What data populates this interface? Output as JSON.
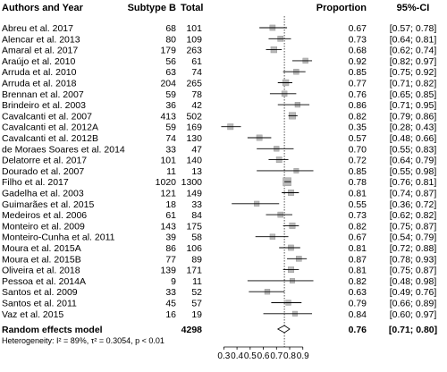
{
  "chart_data": {
    "type": "forest",
    "headers": {
      "study": "Authors and Year",
      "events": "Subtype B",
      "total": "Total",
      "proportion": "Proportion",
      "ci": "95%-CI"
    },
    "studies": [
      {
        "label": "Abreu et al. 2017",
        "events": "68",
        "total": "101",
        "prop": "0.67",
        "ci": "[0.57; 0.78]",
        "est": 0.67,
        "lo": 0.57,
        "hi": 0.78
      },
      {
        "label": "Alencar et al. 2013",
        "events": "80",
        "total": "109",
        "prop": "0.73",
        "ci": "[0.64; 0.81]",
        "est": 0.73,
        "lo": 0.64,
        "hi": 0.81
      },
      {
        "label": "Amaral et al. 2017",
        "events": "179",
        "total": "263",
        "prop": "0.68",
        "ci": "[0.62; 0.74]",
        "est": 0.68,
        "lo": 0.62,
        "hi": 0.74
      },
      {
        "label": "Araújo et al. 2010",
        "events": "56",
        "total": "61",
        "prop": "0.92",
        "ci": "[0.82; 0.97]",
        "est": 0.92,
        "lo": 0.82,
        "hi": 0.97
      },
      {
        "label": "Arruda et al. 2010",
        "events": "63",
        "total": "74",
        "prop": "0.85",
        "ci": "[0.75; 0.92]",
        "est": 0.85,
        "lo": 0.75,
        "hi": 0.92
      },
      {
        "label": "Arruda et al. 2018",
        "events": "204",
        "total": "265",
        "prop": "0.77",
        "ci": "[0.71; 0.82]",
        "est": 0.77,
        "lo": 0.71,
        "hi": 0.82
      },
      {
        "label": "Brennan et al. 2007",
        "events": "59",
        "total": "78",
        "prop": "0.76",
        "ci": "[0.65; 0.85]",
        "est": 0.76,
        "lo": 0.65,
        "hi": 0.85
      },
      {
        "label": "Brindeiro et al. 2003",
        "events": "36",
        "total": "42",
        "prop": "0.86",
        "ci": "[0.71; 0.95]",
        "est": 0.86,
        "lo": 0.71,
        "hi": 0.95
      },
      {
        "label": "Cavalcanti et al. 2007",
        "events": "413",
        "total": "502",
        "prop": "0.82",
        "ci": "[0.79; 0.86]",
        "est": 0.82,
        "lo": 0.79,
        "hi": 0.86
      },
      {
        "label": "Cavalcanti et al. 2012A",
        "events": "59",
        "total": "169",
        "prop": "0.35",
        "ci": "[0.28; 0.43]",
        "est": 0.35,
        "lo": 0.28,
        "hi": 0.43
      },
      {
        "label": "Cavalcanti et al. 2012B",
        "events": "74",
        "total": "130",
        "prop": "0.57",
        "ci": "[0.48; 0.66]",
        "est": 0.57,
        "lo": 0.48,
        "hi": 0.66
      },
      {
        "label": "de Moraes Soares et al. 2014",
        "events": "33",
        "total": "47",
        "prop": "0.70",
        "ci": "[0.55; 0.83]",
        "est": 0.7,
        "lo": 0.55,
        "hi": 0.83
      },
      {
        "label": "Delatorre et al. 2017",
        "events": "101",
        "total": "140",
        "prop": "0.72",
        "ci": "[0.64; 0.79]",
        "est": 0.72,
        "lo": 0.64,
        "hi": 0.79
      },
      {
        "label": "Dourado et al. 2007",
        "events": "11",
        "total": "13",
        "prop": "0.85",
        "ci": "[0.55; 0.98]",
        "est": 0.85,
        "lo": 0.55,
        "hi": 0.98
      },
      {
        "label": "Filho et al. 2017",
        "events": "1020",
        "total": "1300",
        "prop": "0.78",
        "ci": "[0.76; 0.81]",
        "est": 0.78,
        "lo": 0.76,
        "hi": 0.81
      },
      {
        "label": "Gadelha et al. 2003",
        "events": "121",
        "total": "149",
        "prop": "0.81",
        "ci": "[0.74; 0.87]",
        "est": 0.81,
        "lo": 0.74,
        "hi": 0.87
      },
      {
        "label": "Guimarães et al. 2015",
        "events": "18",
        "total": "33",
        "prop": "0.55",
        "ci": "[0.36; 0.72]",
        "est": 0.55,
        "lo": 0.36,
        "hi": 0.72
      },
      {
        "label": "Medeiros et al. 2006",
        "events": "61",
        "total": "84",
        "prop": "0.73",
        "ci": "[0.62; 0.82]",
        "est": 0.73,
        "lo": 0.62,
        "hi": 0.82
      },
      {
        "label": "Monteiro et al. 2009",
        "events": "143",
        "total": "175",
        "prop": "0.82",
        "ci": "[0.75; 0.87]",
        "est": 0.82,
        "lo": 0.75,
        "hi": 0.87
      },
      {
        "label": "Monteiro-Cunha et al. 2011",
        "events": "39",
        "total": "58",
        "prop": "0.67",
        "ci": "[0.54; 0.79]",
        "est": 0.67,
        "lo": 0.54,
        "hi": 0.79
      },
      {
        "label": "Moura et al. 2015A",
        "events": "86",
        "total": "106",
        "prop": "0.81",
        "ci": "[0.72; 0.88]",
        "est": 0.81,
        "lo": 0.72,
        "hi": 0.88
      },
      {
        "label": "Moura et al. 2015B",
        "events": "77",
        "total": "89",
        "prop": "0.87",
        "ci": "[0.78; 0.93]",
        "est": 0.87,
        "lo": 0.78,
        "hi": 0.93
      },
      {
        "label": "Oliveira et al. 2018",
        "events": "139",
        "total": "171",
        "prop": "0.81",
        "ci": "[0.75; 0.87]",
        "est": 0.81,
        "lo": 0.75,
        "hi": 0.87
      },
      {
        "label": "Pessoa et al. 2014A",
        "events": "9",
        "total": "11",
        "prop": "0.82",
        "ci": "[0.48; 0.98]",
        "est": 0.82,
        "lo": 0.48,
        "hi": 0.98
      },
      {
        "label": "Santos et al. 2009",
        "events": "33",
        "total": "52",
        "prop": "0.63",
        "ci": "[0.49; 0.76]",
        "est": 0.63,
        "lo": 0.49,
        "hi": 0.76
      },
      {
        "label": "Santos et al. 2011",
        "events": "45",
        "total": "57",
        "prop": "0.79",
        "ci": "[0.66; 0.89]",
        "est": 0.79,
        "lo": 0.66,
        "hi": 0.89
      },
      {
        "label": "Vaz et al. 2015",
        "events": "16",
        "total": "19",
        "prop": "0.84",
        "ci": "[0.60; 0.97]",
        "est": 0.84,
        "lo": 0.6,
        "hi": 0.97
      }
    ],
    "summary": {
      "label": "Random effects model",
      "total": "4298",
      "prop": "0.76",
      "ci": "[0.71; 0.80]",
      "est": 0.76,
      "lo": 0.71,
      "hi": 0.8
    },
    "heterogeneity": "Heterogeneity: I² = 89%, τ² = 0.3054, p < 0.01",
    "xaxis": {
      "ticks": [
        0.3,
        0.4,
        0.5,
        0.6,
        0.7,
        0.8,
        0.9
      ],
      "tick_labels": [
        "0.3",
        "0.4",
        "0.5",
        "0.6",
        "0.7",
        "0.8",
        "0.9"
      ],
      "range": [
        0.25,
        0.99
      ]
    },
    "reference_line": 0.76,
    "colors": {
      "box": "#b8b8b8",
      "ci_line": "#000000",
      "ref_line": "#555555"
    }
  }
}
